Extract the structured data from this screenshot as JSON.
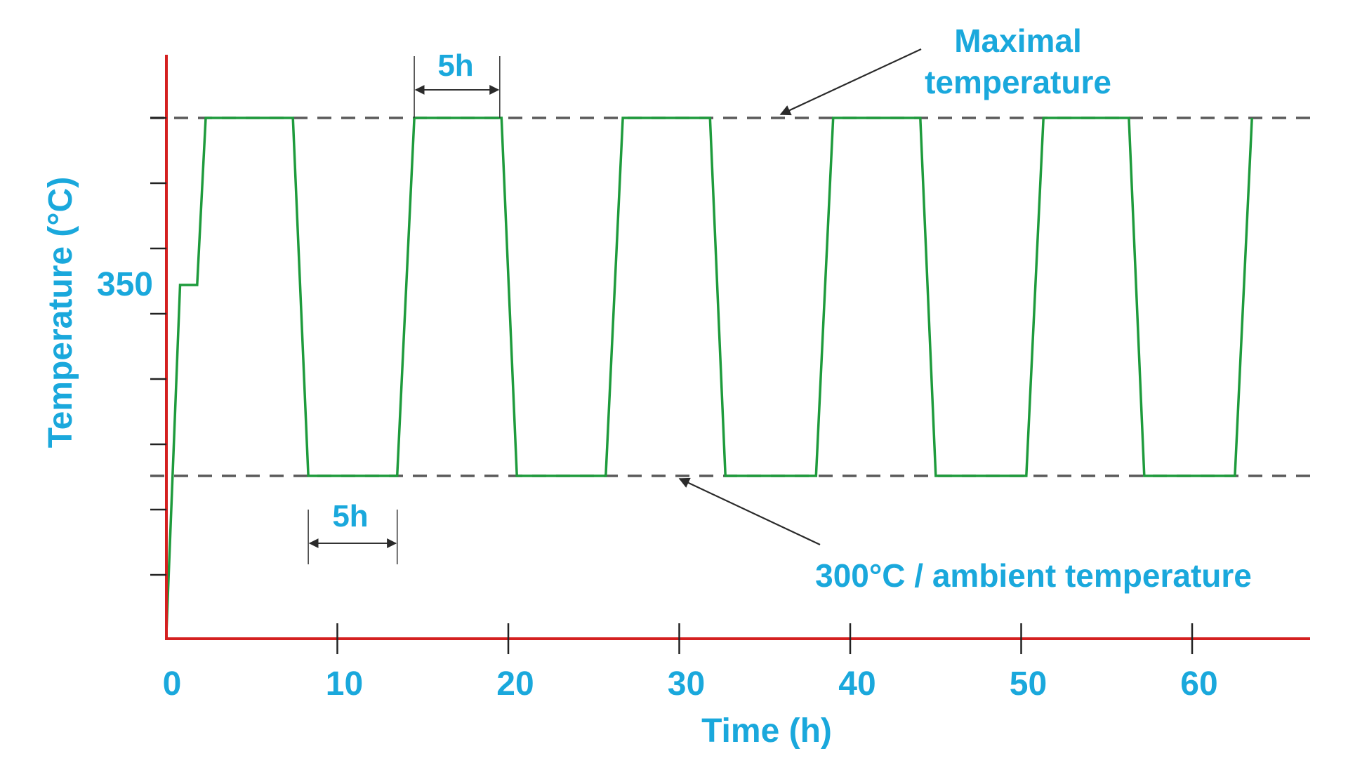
{
  "colors": {
    "axis": "#d42020",
    "series": "#1e9b3c",
    "text": "#1aa8dc",
    "reference": "#5a5a5a",
    "annotation": "#2a2a2a"
  },
  "chart_data": {
    "type": "line",
    "title": "",
    "xlabel": "Time (h)",
    "ylabel": "Temperature (°C)",
    "xlim": [
      0,
      67
    ],
    "x_ticks": [
      0,
      10,
      20,
      30,
      40,
      50,
      60
    ],
    "x_tick_labels": [
      "0",
      "10",
      "20",
      "30",
      "40",
      "50",
      "60"
    ],
    "y_tick_label": "350",
    "y_tick_value": 350,
    "ylim": [
      262,
      385
    ],
    "grid": false,
    "reference_lines": [
      {
        "y": 375,
        "style": "dashed",
        "annotation": "Maximal temperature",
        "annotation_lines": [
          "Maximal",
          "temperature"
        ]
      },
      {
        "y": 300,
        "style": "dashed",
        "annotation": "300°C / ambient temperature"
      }
    ],
    "interval_markers": [
      {
        "label": "5h",
        "x_start": 14.5,
        "x_end": 19.5,
        "at": "maximal temperature"
      },
      {
        "label": "5h",
        "x_start": 8.3,
        "x_end": 13.5,
        "at": "300°C"
      }
    ],
    "series": [
      {
        "points": [
          {
            "x": 0.0,
            "y": 267
          },
          {
            "x": 0.8,
            "y": 340
          },
          {
            "x": 1.8,
            "y": 340
          },
          {
            "x": 2.3,
            "y": 375
          },
          {
            "x": 7.4,
            "y": 375
          },
          {
            "x": 8.3,
            "y": 300
          },
          {
            "x": 13.5,
            "y": 300
          },
          {
            "x": 14.5,
            "y": 375
          },
          {
            "x": 19.6,
            "y": 375
          },
          {
            "x": 20.5,
            "y": 300
          },
          {
            "x": 25.7,
            "y": 300
          },
          {
            "x": 26.7,
            "y": 375
          },
          {
            "x": 31.8,
            "y": 375
          },
          {
            "x": 32.7,
            "y": 300
          },
          {
            "x": 38.0,
            "y": 300
          },
          {
            "x": 39.0,
            "y": 375
          },
          {
            "x": 44.1,
            "y": 375
          },
          {
            "x": 45.0,
            "y": 300
          },
          {
            "x": 50.3,
            "y": 300
          },
          {
            "x": 51.3,
            "y": 375
          },
          {
            "x": 56.3,
            "y": 375
          },
          {
            "x": 57.2,
            "y": 300
          },
          {
            "x": 62.5,
            "y": 300
          },
          {
            "x": 63.5,
            "y": 375
          }
        ]
      }
    ]
  }
}
